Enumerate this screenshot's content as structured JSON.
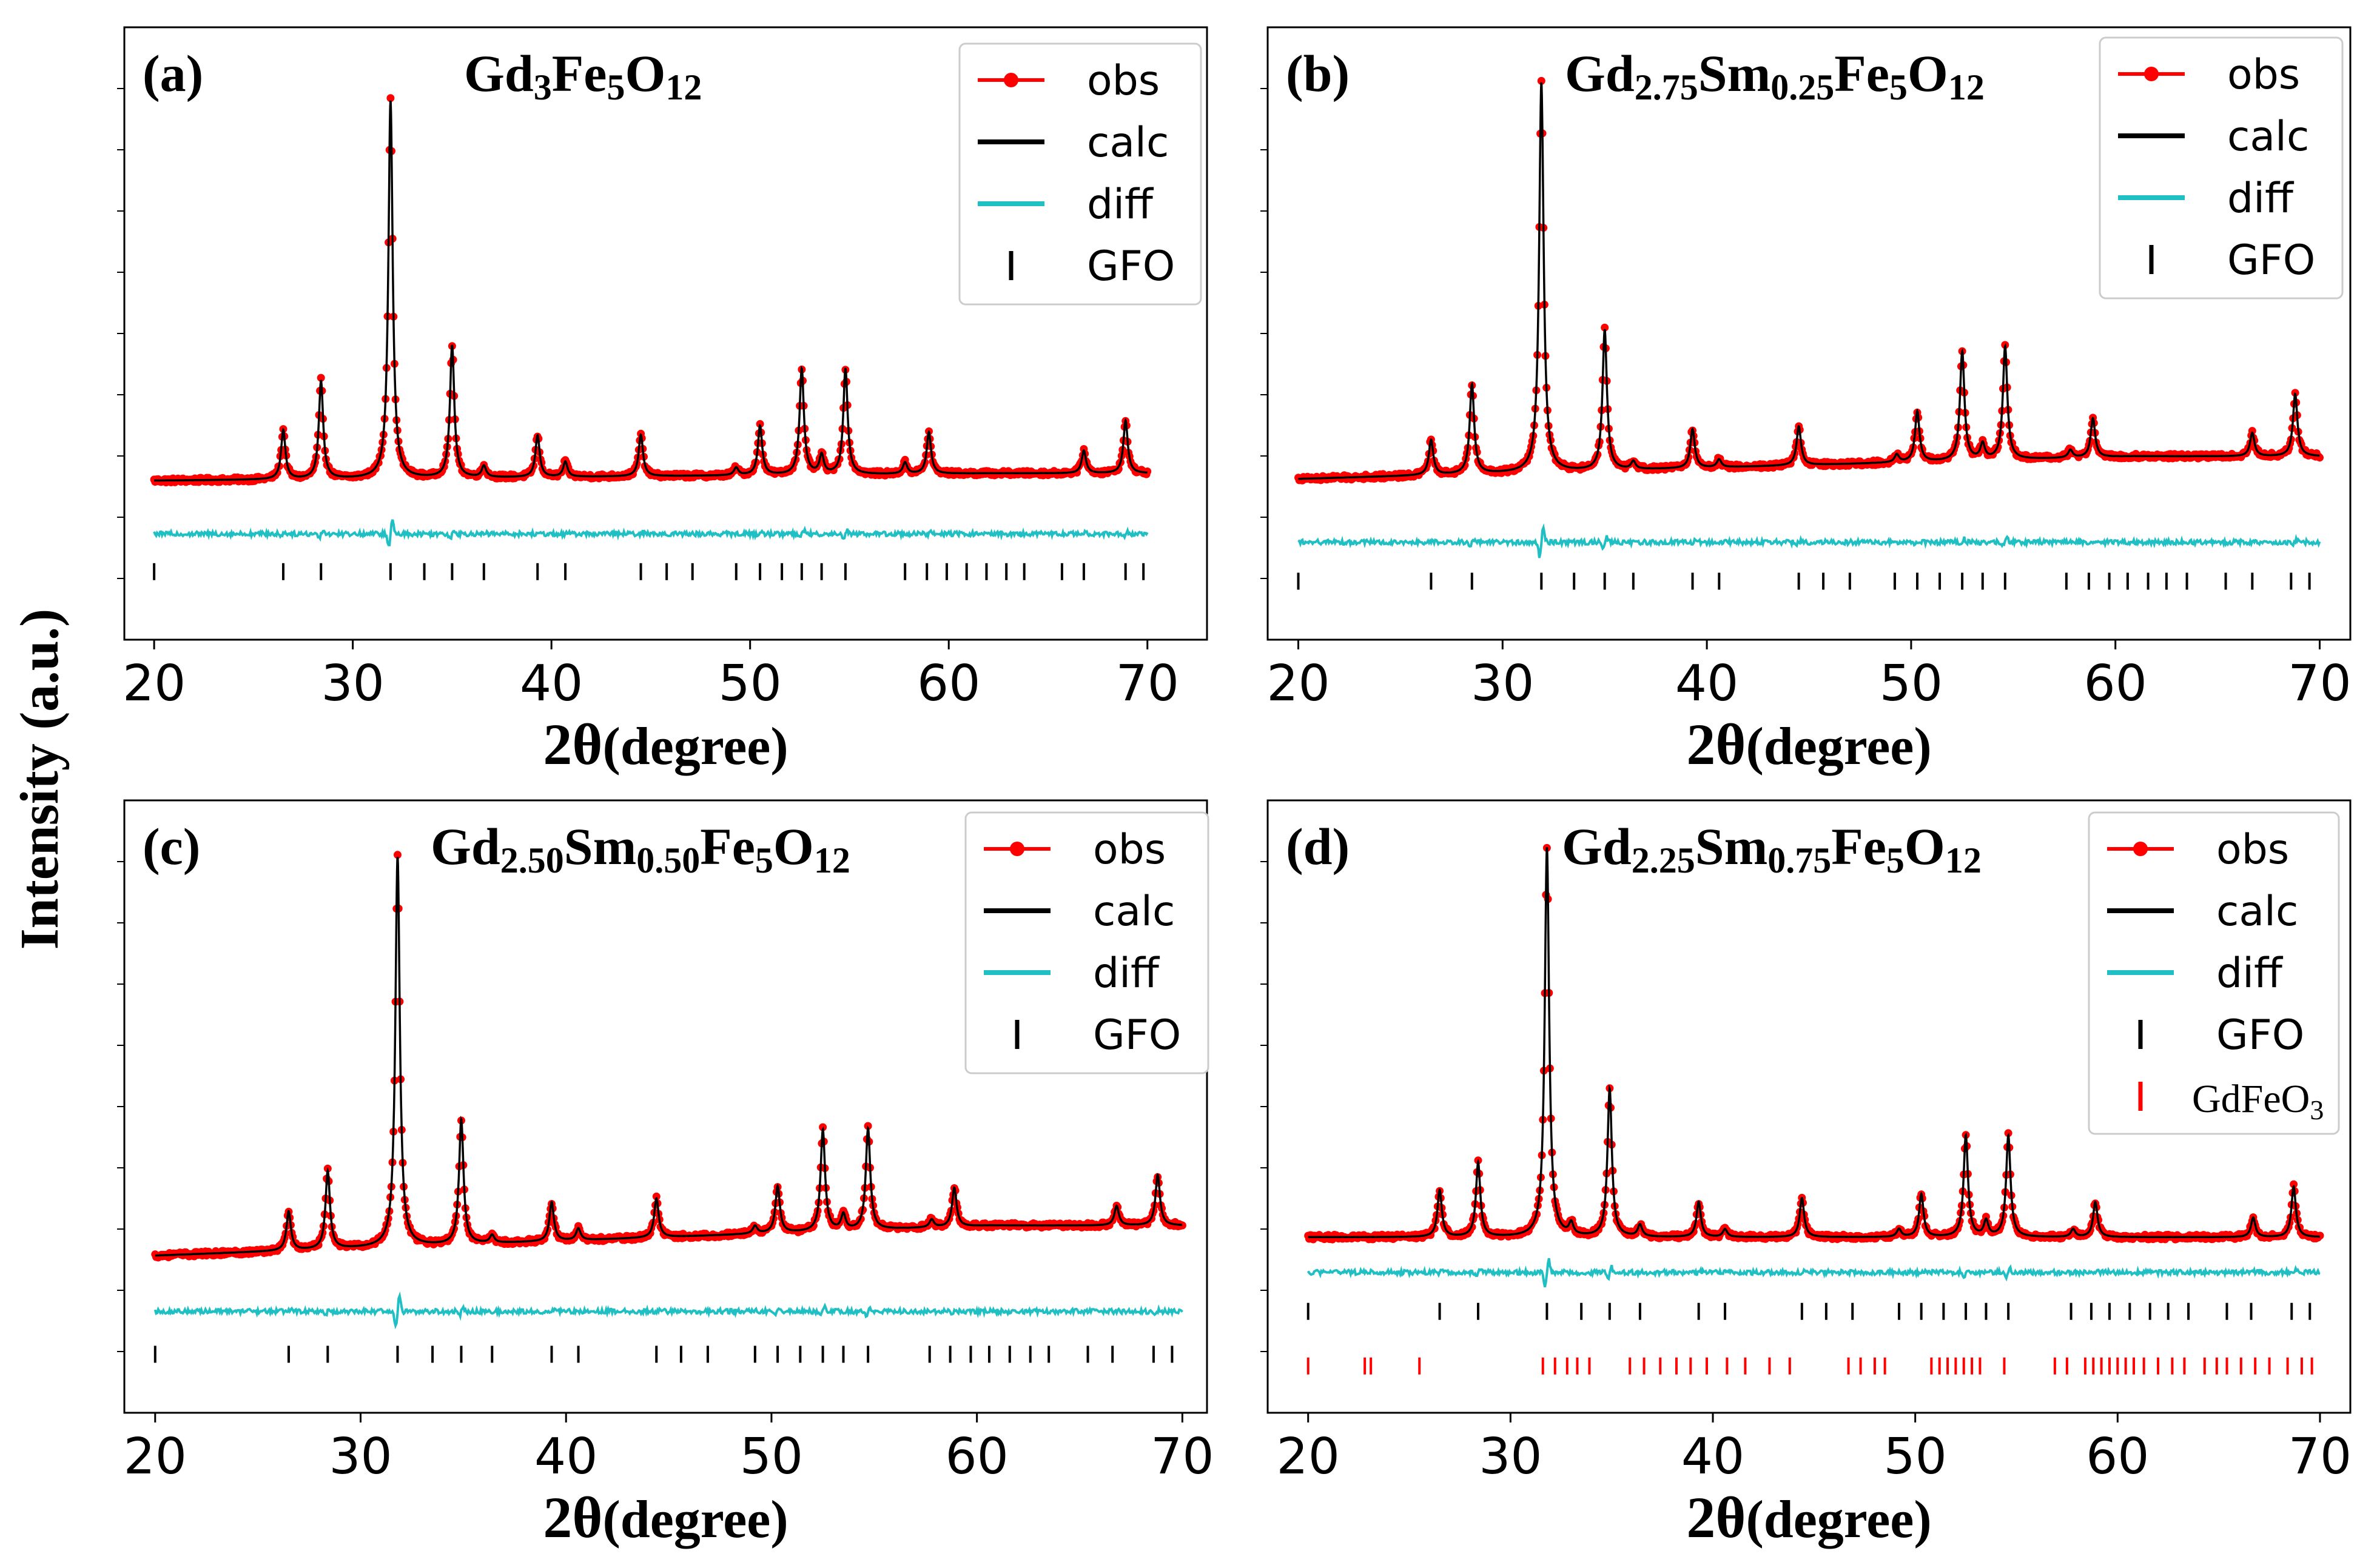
{
  "figure": {
    "y_axis_label": "Intensity (a.u.)"
  },
  "chart_data": [
    {
      "type": "line",
      "panel": "(a)",
      "formula": [
        {
          "t": "Gd",
          "s": ""
        },
        {
          "t": "3",
          "s": "sub"
        },
        {
          "t": "Fe",
          "s": ""
        },
        {
          "t": "5",
          "s": "sub"
        },
        {
          "t": "O",
          "s": ""
        },
        {
          "t": "12",
          "s": "sub"
        }
      ],
      "title": "Gd3Fe5O12",
      "xlabel_main": "2θ",
      "xlabel_rest": "(degree)",
      "xlim": [
        18.5,
        73
      ],
      "ylim": [
        -0.42,
        1.2
      ],
      "xticks": [
        20,
        30,
        40,
        50,
        60,
        70
      ],
      "baseline": {
        "start": 0.0,
        "end": 0.02
      },
      "diff_level": -0.14,
      "peaks": [
        {
          "x": 26.5,
          "h": 0.13
        },
        {
          "x": 28.4,
          "h": 0.26
        },
        {
          "x": 31.9,
          "h": 1.0
        },
        {
          "x": 35.0,
          "h": 0.35
        },
        {
          "x": 36.6,
          "h": 0.03
        },
        {
          "x": 39.3,
          "h": 0.11
        },
        {
          "x": 40.7,
          "h": 0.04
        },
        {
          "x": 44.5,
          "h": 0.11
        },
        {
          "x": 49.3,
          "h": 0.02
        },
        {
          "x": 50.5,
          "h": 0.13
        },
        {
          "x": 52.6,
          "h": 0.28
        },
        {
          "x": 53.6,
          "h": 0.05
        },
        {
          "x": 54.8,
          "h": 0.28
        },
        {
          "x": 57.8,
          "h": 0.03
        },
        {
          "x": 59.0,
          "h": 0.11
        },
        {
          "x": 66.8,
          "h": 0.06
        },
        {
          "x": 68.9,
          "h": 0.14
        }
      ],
      "tick_rows": [
        {
          "name": "GFO",
          "color": "#000000",
          "level": -0.24,
          "positions": [
            20.0,
            26.5,
            28.4,
            31.9,
            33.6,
            35.0,
            36.6,
            39.3,
            40.7,
            44.5,
            45.8,
            47.1,
            49.3,
            50.5,
            51.6,
            52.6,
            53.6,
            54.8,
            57.8,
            58.9,
            59.9,
            60.9,
            61.9,
            62.9,
            63.8,
            65.7,
            66.8,
            68.9,
            69.8
          ]
        }
      ],
      "legend": {
        "placement": "top-right",
        "entries": [
          {
            "label": "obs",
            "kind": "obs",
            "color": "#ff0000"
          },
          {
            "label": "calc",
            "kind": "line",
            "color": "#000000"
          },
          {
            "label": "diff",
            "kind": "line",
            "color": "#1fbfc3"
          },
          {
            "label": "GFO",
            "kind": "tick",
            "color": "#000000"
          }
        ]
      }
    },
    {
      "type": "line",
      "panel": "(b)",
      "formula": [
        {
          "t": "Gd",
          "s": ""
        },
        {
          "t": "2.75",
          "s": "sub"
        },
        {
          "t": "Sm",
          "s": ""
        },
        {
          "t": "0.25",
          "s": "sub"
        },
        {
          "t": "Fe",
          "s": ""
        },
        {
          "t": "5",
          "s": "sub"
        },
        {
          "t": "O",
          "s": ""
        },
        {
          "t": "12",
          "s": "sub"
        }
      ],
      "title": "Gd2.75Sm0.25Fe5O12",
      "xlabel_main": "2θ",
      "xlabel_rest": "(degree)",
      "xlim": [
        18.5,
        71.5
      ],
      "ylim": [
        -0.45,
        1.12
      ],
      "xticks": [
        20,
        30,
        40,
        50,
        60,
        70
      ],
      "baseline": {
        "start": -0.04,
        "end": 0.02
      },
      "diff_level": -0.2,
      "peaks": [
        {
          "x": 26.5,
          "h": 0.09
        },
        {
          "x": 28.5,
          "h": 0.23
        },
        {
          "x": 31.9,
          "h": 1.0
        },
        {
          "x": 35.0,
          "h": 0.36
        },
        {
          "x": 36.4,
          "h": 0.02
        },
        {
          "x": 39.3,
          "h": 0.1
        },
        {
          "x": 40.6,
          "h": 0.02
        },
        {
          "x": 44.5,
          "h": 0.1
        },
        {
          "x": 49.3,
          "h": 0.02
        },
        {
          "x": 50.3,
          "h": 0.13
        },
        {
          "x": 52.5,
          "h": 0.28
        },
        {
          "x": 53.5,
          "h": 0.04
        },
        {
          "x": 54.6,
          "h": 0.29
        },
        {
          "x": 57.8,
          "h": 0.02
        },
        {
          "x": 58.9,
          "h": 0.1
        },
        {
          "x": 66.7,
          "h": 0.06
        },
        {
          "x": 68.8,
          "h": 0.16
        }
      ],
      "tick_rows": [
        {
          "name": "GFO",
          "color": "#000000",
          "level": -0.3,
          "positions": [
            20.0,
            26.5,
            28.5,
            31.9,
            33.5,
            35.0,
            36.4,
            39.3,
            40.6,
            44.5,
            45.7,
            47.0,
            49.2,
            50.3,
            51.4,
            52.5,
            53.5,
            54.6,
            57.6,
            58.7,
            59.7,
            60.6,
            61.6,
            62.5,
            63.5,
            65.4,
            66.7,
            68.6,
            69.5
          ]
        }
      ],
      "legend": {
        "placement": "top-right",
        "entries": [
          {
            "label": "obs",
            "kind": "obs",
            "color": "#ff0000"
          },
          {
            "label": "calc",
            "kind": "line",
            "color": "#000000"
          },
          {
            "label": "diff",
            "kind": "line",
            "color": "#1fbfc3"
          },
          {
            "label": "GFO",
            "kind": "tick",
            "color": "#000000"
          }
        ]
      }
    },
    {
      "type": "line",
      "panel": "(c)",
      "formula": [
        {
          "t": "Gd",
          "s": ""
        },
        {
          "t": "2.50",
          "s": "sub"
        },
        {
          "t": "Sm",
          "s": ""
        },
        {
          "t": "0.50",
          "s": "sub"
        },
        {
          "t": "Fe",
          "s": ""
        },
        {
          "t": "5",
          "s": "sub"
        },
        {
          "t": "O",
          "s": ""
        },
        {
          "t": "12",
          "s": "sub"
        }
      ],
      "title": "Gd2.50Sm0.50Fe5O12",
      "xlabel_main": "2θ",
      "xlabel_rest": "(degree)",
      "xlim": [
        18.5,
        71.2
      ],
      "ylim": [
        -0.42,
        1.15
      ],
      "xticks": [
        20,
        30,
        40,
        50,
        60,
        70
      ],
      "baseline": {
        "start": -0.02,
        "end": 0.06
      },
      "diff_level": -0.16,
      "peaks": [
        {
          "x": 26.5,
          "h": 0.1
        },
        {
          "x": 28.4,
          "h": 0.2
        },
        {
          "x": 31.8,
          "h": 1.0
        },
        {
          "x": 34.9,
          "h": 0.32
        },
        {
          "x": 36.4,
          "h": 0.02
        },
        {
          "x": 39.3,
          "h": 0.1
        },
        {
          "x": 40.6,
          "h": 0.03
        },
        {
          "x": 44.4,
          "h": 0.1
        },
        {
          "x": 49.2,
          "h": 0.02
        },
        {
          "x": 50.3,
          "h": 0.12
        },
        {
          "x": 52.5,
          "h": 0.26
        },
        {
          "x": 53.5,
          "h": 0.04
        },
        {
          "x": 54.7,
          "h": 0.26
        },
        {
          "x": 57.8,
          "h": 0.02
        },
        {
          "x": 58.9,
          "h": 0.1
        },
        {
          "x": 66.8,
          "h": 0.05
        },
        {
          "x": 68.8,
          "h": 0.13
        }
      ],
      "tick_rows": [
        {
          "name": "GFO",
          "color": "#000000",
          "level": -0.27,
          "positions": [
            20.0,
            26.5,
            28.4,
            31.8,
            33.5,
            34.9,
            36.4,
            39.3,
            40.6,
            44.4,
            45.6,
            46.9,
            49.2,
            50.3,
            51.4,
            52.5,
            53.5,
            54.7,
            57.7,
            58.7,
            59.7,
            60.6,
            61.6,
            62.6,
            63.5,
            65.4,
            66.6,
            68.6,
            69.5
          ]
        }
      ],
      "legend": {
        "placement": "top-right",
        "entries": [
          {
            "label": "obs",
            "kind": "obs",
            "color": "#ff0000"
          },
          {
            "label": "calc",
            "kind": "line",
            "color": "#000000"
          },
          {
            "label": "diff",
            "kind": "line",
            "color": "#1fbfc3"
          },
          {
            "label": "GFO",
            "kind": "tick",
            "color": "#000000"
          }
        ]
      }
    },
    {
      "type": "line",
      "panel": "(d)",
      "formula": [
        {
          "t": "Gd",
          "s": ""
        },
        {
          "t": "2.25",
          "s": "sub"
        },
        {
          "t": "Sm",
          "s": ""
        },
        {
          "t": "0.75",
          "s": "sub"
        },
        {
          "t": "Fe",
          "s": ""
        },
        {
          "t": "5",
          "s": "sub"
        },
        {
          "t": "O",
          "s": ""
        },
        {
          "t": "12",
          "s": "sub"
        }
      ],
      "title": "Gd2.25Sm0.75Fe5O12",
      "xlabel_main": "2θ",
      "xlabel_rest": "(degree)",
      "xlim": [
        18.0,
        71.5
      ],
      "ylim": [
        -0.45,
        1.12
      ],
      "xticks": [
        20,
        30,
        40,
        50,
        60,
        70
      ],
      "baseline": {
        "start": 0.0,
        "end": 0.0
      },
      "diff_level": -0.09,
      "peaks": [
        {
          "x": 26.5,
          "h": 0.12
        },
        {
          "x": 28.4,
          "h": 0.19
        },
        {
          "x": 31.8,
          "h": 1.0
        },
        {
          "x": 33.0,
          "h": 0.03
        },
        {
          "x": 34.9,
          "h": 0.38
        },
        {
          "x": 36.4,
          "h": 0.03
        },
        {
          "x": 39.3,
          "h": 0.09
        },
        {
          "x": 40.6,
          "h": 0.02
        },
        {
          "x": 44.4,
          "h": 0.1
        },
        {
          "x": 49.2,
          "h": 0.02
        },
        {
          "x": 50.3,
          "h": 0.11
        },
        {
          "x": 52.5,
          "h": 0.26
        },
        {
          "x": 53.5,
          "h": 0.04
        },
        {
          "x": 54.6,
          "h": 0.26
        },
        {
          "x": 57.8,
          "h": 0.02
        },
        {
          "x": 58.9,
          "h": 0.09
        },
        {
          "x": 66.7,
          "h": 0.05
        },
        {
          "x": 68.7,
          "h": 0.13
        }
      ],
      "tick_rows": [
        {
          "name": "GFO",
          "color": "#000000",
          "level": -0.19,
          "positions": [
            20.0,
            26.5,
            28.4,
            31.8,
            33.5,
            34.9,
            36.4,
            39.3,
            40.6,
            44.4,
            45.6,
            46.9,
            49.2,
            50.3,
            51.4,
            52.5,
            53.5,
            54.6,
            57.7,
            58.7,
            59.6,
            60.6,
            61.6,
            62.5,
            63.5,
            65.4,
            66.6,
            68.6,
            69.5
          ]
        },
        {
          "name": "GdFeO3",
          "color": "#ff0000",
          "level": -0.33,
          "positions": [
            20.0,
            22.8,
            23.1,
            25.5,
            31.6,
            32.2,
            32.8,
            33.3,
            33.9,
            35.9,
            36.6,
            37.4,
            38.2,
            38.9,
            39.7,
            40.7,
            41.6,
            42.8,
            43.8,
            46.7,
            47.3,
            48.0,
            48.5,
            50.8,
            51.2,
            51.6,
            52.0,
            52.4,
            52.8,
            53.2,
            54.4,
            56.9,
            57.5,
            58.4,
            58.8,
            59.2,
            59.6,
            60.0,
            60.4,
            60.8,
            61.3,
            62.0,
            62.7,
            63.3,
            64.3,
            64.9,
            65.4,
            66.1,
            66.8,
            67.5,
            68.4,
            69.1,
            69.6
          ]
        }
      ],
      "legend": {
        "placement": "top-right",
        "entries": [
          {
            "label": "obs",
            "kind": "obs",
            "color": "#ff0000"
          },
          {
            "label": "calc",
            "kind": "line",
            "color": "#000000"
          },
          {
            "label": "diff",
            "kind": "line",
            "color": "#1fbfc3"
          },
          {
            "label": "GFO",
            "kind": "tick",
            "color": "#000000"
          },
          {
            "label": "GdFeO",
            "sub": "3",
            "kind": "tick",
            "color": "#ff0000"
          }
        ]
      }
    }
  ]
}
